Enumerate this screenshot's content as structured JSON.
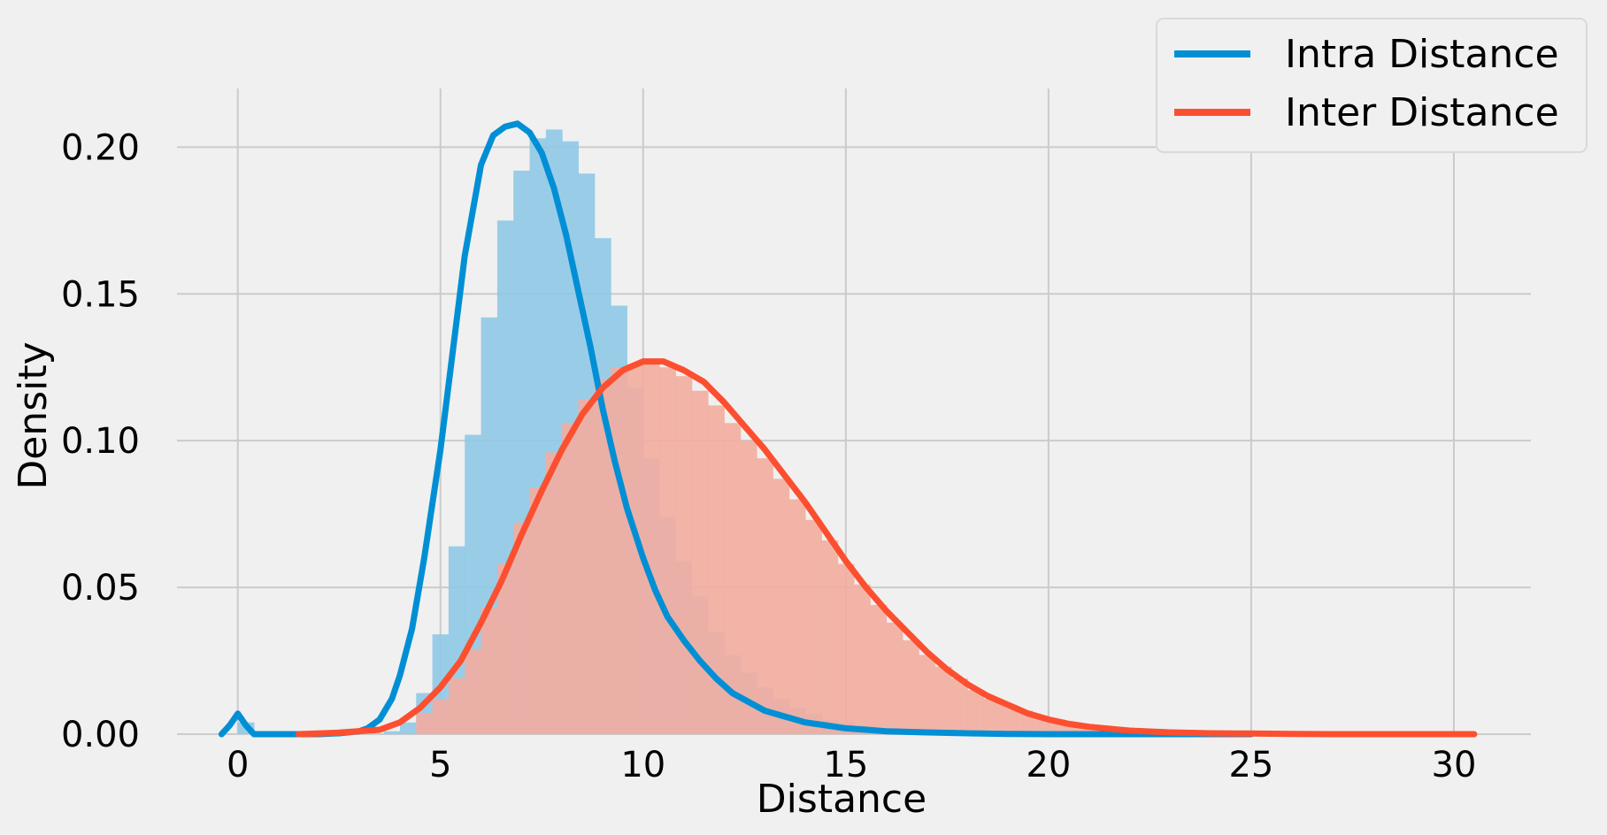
{
  "chart_data": {
    "type": "area",
    "xlabel": "Distance",
    "ylabel": "Density",
    "xlim": [
      -1.5,
      31.9
    ],
    "ylim": [
      0,
      0.22
    ],
    "x_ticks": [
      0,
      5,
      10,
      15,
      20,
      25,
      30
    ],
    "x_tick_labels": [
      "0",
      "5",
      "10",
      "15",
      "20",
      "25",
      "30"
    ],
    "y_ticks": [
      0,
      0.05,
      0.1,
      0.15,
      0.2
    ],
    "y_tick_labels": [
      "0.00",
      "0.05",
      "0.10",
      "0.15",
      "0.20"
    ],
    "grid": true,
    "legend_position": "top-right",
    "series": [
      {
        "name": "Intra Distance",
        "color": "#008fd5",
        "hist_color": "#8fc9e6",
        "histogram": {
          "bin_width": 0.4,
          "start": 0,
          "values": [
            0.004,
            0,
            0,
            0,
            0,
            0,
            0,
            0,
            0,
            0.001,
            0.004,
            0.014,
            0.034,
            0.064,
            0.102,
            0.142,
            0.175,
            0.192,
            0.203,
            0.206,
            0.202,
            0.191,
            0.169,
            0.146,
            0.118,
            0.094,
            0.074,
            0.059,
            0.047,
            0.035,
            0.027,
            0.021,
            0.016,
            0.012,
            0.009,
            0.007,
            0.005,
            0.004,
            0.003,
            0.002,
            0.0015,
            0.001,
            0.0007,
            0.0005,
            0.0003,
            0.0002
          ]
        },
        "kde": {
          "x": [
            -0.4,
            -0.2,
            0,
            0.2,
            0.4,
            0.6,
            1,
            1.5,
            2,
            2.5,
            3,
            3.2,
            3.5,
            3.8,
            4,
            4.3,
            4.6,
            5,
            5.3,
            5.6,
            6,
            6.3,
            6.6,
            6.9,
            7.2,
            7.5,
            7.8,
            8.1,
            8.4,
            8.7,
            9,
            9.3,
            9.6,
            10,
            10.3,
            10.6,
            11,
            11.4,
            11.8,
            12.2,
            12.6,
            13,
            13.5,
            14,
            14.5,
            15,
            15.5,
            16,
            17,
            18,
            19,
            20,
            22,
            25
          ],
          "y": [
            0,
            0.003,
            0.007,
            0.003,
            0,
            0,
            0,
            0,
            0,
            0.0003,
            0.001,
            0.002,
            0.005,
            0.012,
            0.02,
            0.036,
            0.06,
            0.097,
            0.13,
            0.163,
            0.194,
            0.204,
            0.207,
            0.208,
            0.205,
            0.198,
            0.186,
            0.17,
            0.151,
            0.132,
            0.111,
            0.093,
            0.077,
            0.06,
            0.049,
            0.04,
            0.032,
            0.025,
            0.019,
            0.014,
            0.011,
            0.008,
            0.006,
            0.004,
            0.003,
            0.002,
            0.0015,
            0.001,
            0.0006,
            0.0003,
            0.0001,
            0,
            0,
            0
          ]
        }
      },
      {
        "name": "Inter Distance",
        "color": "#fc4f30",
        "hist_color": "#f3ada0",
        "histogram": {
          "bin_width": 0.4,
          "start": 4.4,
          "values": [
            0.007,
            0.012,
            0.019,
            0.029,
            0.043,
            0.058,
            0.072,
            0.084,
            0.096,
            0.106,
            0.114,
            0.121,
            0.125,
            0.126,
            0.126,
            0.125,
            0.122,
            0.117,
            0.112,
            0.106,
            0.1,
            0.094,
            0.087,
            0.08,
            0.073,
            0.066,
            0.058,
            0.051,
            0.044,
            0.038,
            0.032,
            0.027,
            0.023,
            0.019,
            0.015,
            0.012,
            0.01,
            0.008,
            0.006,
            0.005,
            0.004,
            0.003,
            0.002,
            0.0015,
            0.001,
            0.0008,
            0.0006,
            0.0004
          ]
        },
        "kde": {
          "x": [
            1.5,
            2.5,
            3.5,
            4,
            4.5,
            5,
            5.5,
            6,
            6.5,
            7,
            7.5,
            8,
            8.5,
            9,
            9.5,
            10,
            10.5,
            11,
            11.5,
            12,
            12.5,
            13,
            13.5,
            14,
            14.5,
            15,
            15.5,
            16,
            16.5,
            17,
            17.5,
            18,
            18.5,
            19,
            19.5,
            20,
            20.5,
            21,
            22,
            23,
            24,
            25,
            26,
            27,
            28,
            29,
            30.5
          ],
          "y": [
            0,
            0.0005,
            0.0015,
            0.004,
            0.009,
            0.016,
            0.025,
            0.038,
            0.052,
            0.068,
            0.083,
            0.097,
            0.109,
            0.118,
            0.124,
            0.127,
            0.127,
            0.124,
            0.12,
            0.113,
            0.105,
            0.097,
            0.088,
            0.079,
            0.069,
            0.059,
            0.05,
            0.042,
            0.035,
            0.028,
            0.022,
            0.017,
            0.013,
            0.01,
            0.007,
            0.005,
            0.0035,
            0.0025,
            0.0012,
            0.0006,
            0.0003,
            0.0002,
            0.0001,
            0,
            0,
            0,
            0
          ]
        }
      }
    ]
  }
}
